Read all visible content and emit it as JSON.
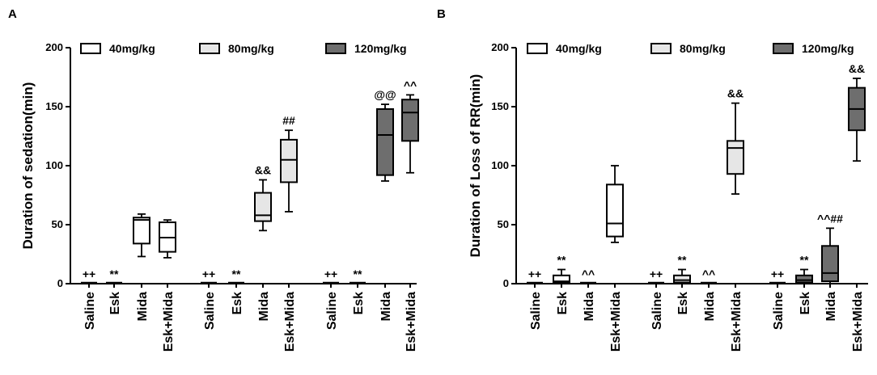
{
  "colors": {
    "g40": "#ffffff",
    "g80": "#e6e6e6",
    "g120": "#6e6e6e",
    "stroke": "#000000"
  },
  "legend": [
    {
      "label": "40mg/kg",
      "group": "g40"
    },
    {
      "label": "80mg/kg",
      "group": "g80"
    },
    {
      "label": "120mg/kg",
      "group": "g120"
    }
  ],
  "chart_data": [
    {
      "panel": "A",
      "type": "box",
      "ylabel": "Duration of sedation(min)",
      "ylim": [
        0,
        200
      ],
      "yticks": [
        0,
        50,
        100,
        150,
        200
      ],
      "categories": [
        "Saline",
        "Esk",
        "Mida",
        "Esk+Mida",
        "Saline",
        "Esk",
        "Mida",
        "Esk+Mida",
        "Saline",
        "Esk",
        "Mida",
        "Esk+Mida"
      ],
      "boxes": [
        {
          "group": "g40",
          "min": 0,
          "q1": 0,
          "median": 0,
          "q3": 0,
          "max": 0,
          "annot": "++"
        },
        {
          "group": "g40",
          "min": 0,
          "q1": 0,
          "median": 0,
          "q3": 0,
          "max": 0,
          "annot": "**"
        },
        {
          "group": "g40",
          "min": 23,
          "q1": 34,
          "median": 54,
          "q3": 56,
          "max": 59,
          "annot": ""
        },
        {
          "group": "g40",
          "min": 22,
          "q1": 27,
          "median": 39,
          "q3": 52,
          "max": 54,
          "annot": ""
        },
        {
          "group": "g80",
          "min": 0,
          "q1": 0,
          "median": 0,
          "q3": 0,
          "max": 0,
          "annot": "++"
        },
        {
          "group": "g80",
          "min": 0,
          "q1": 0,
          "median": 0,
          "q3": 0,
          "max": 0,
          "annot": "**"
        },
        {
          "group": "g80",
          "min": 45,
          "q1": 53,
          "median": 58,
          "q3": 77,
          "max": 88,
          "annot": "&&"
        },
        {
          "group": "g80",
          "min": 61,
          "q1": 86,
          "median": 105,
          "q3": 122,
          "max": 130,
          "annot": "##"
        },
        {
          "group": "g120",
          "min": 0,
          "q1": 0,
          "median": 0,
          "q3": 0,
          "max": 0,
          "annot": "++"
        },
        {
          "group": "g120",
          "min": 0,
          "q1": 0,
          "median": 0,
          "q3": 0,
          "max": 0,
          "annot": "**"
        },
        {
          "group": "g120",
          "min": 87,
          "q1": 92,
          "median": 126,
          "q3": 148,
          "max": 152,
          "annot": "@@"
        },
        {
          "group": "g120",
          "min": 94,
          "q1": 121,
          "median": 145,
          "q3": 156,
          "max": 160,
          "annot": "^^"
        }
      ]
    },
    {
      "panel": "B",
      "type": "box",
      "ylabel": "Duration of Loss of RR(min)",
      "ylim": [
        0,
        200
      ],
      "yticks": [
        0,
        50,
        100,
        150,
        200
      ],
      "categories": [
        "Saline",
        "Esk",
        "Mida",
        "Esk+Mida",
        "Saline",
        "Esk",
        "Mida",
        "Esk+Mida",
        "Saline",
        "Esk",
        "Mida",
        "Esk+Mida"
      ],
      "boxes": [
        {
          "group": "g40",
          "min": 0,
          "q1": 0,
          "median": 0,
          "q3": 0,
          "max": 0,
          "annot": "++"
        },
        {
          "group": "g40",
          "min": 0,
          "q1": 1,
          "median": 2,
          "q3": 7,
          "max": 12,
          "annot": "**"
        },
        {
          "group": "g40",
          "min": 0,
          "q1": 0,
          "median": 0,
          "q3": 0,
          "max": 0,
          "annot": "^^"
        },
        {
          "group": "g40",
          "min": 35,
          "q1": 40,
          "median": 51,
          "q3": 84,
          "max": 100,
          "annot": ""
        },
        {
          "group": "g80",
          "min": 0,
          "q1": 0,
          "median": 0,
          "q3": 0,
          "max": 0,
          "annot": "++"
        },
        {
          "group": "g80",
          "min": 0,
          "q1": 1,
          "median": 3,
          "q3": 7,
          "max": 12,
          "annot": "**"
        },
        {
          "group": "g80",
          "min": 0,
          "q1": 0,
          "median": 0,
          "q3": 0,
          "max": 0,
          "annot": "^^"
        },
        {
          "group": "g80",
          "min": 76,
          "q1": 93,
          "median": 115,
          "q3": 121,
          "max": 153,
          "annot": "&&"
        },
        {
          "group": "g120",
          "min": 0,
          "q1": 0,
          "median": 0,
          "q3": 0,
          "max": 0,
          "annot": "++"
        },
        {
          "group": "g120",
          "min": 0,
          "q1": 1,
          "median": 3,
          "q3": 7,
          "max": 12,
          "annot": "**"
        },
        {
          "group": "g120",
          "min": 0,
          "q1": 2,
          "median": 9,
          "q3": 32,
          "max": 47,
          "annot": "^^##"
        },
        {
          "group": "g120",
          "min": 104,
          "q1": 130,
          "median": 148,
          "q3": 166,
          "max": 174,
          "annot": "&&"
        }
      ]
    }
  ]
}
